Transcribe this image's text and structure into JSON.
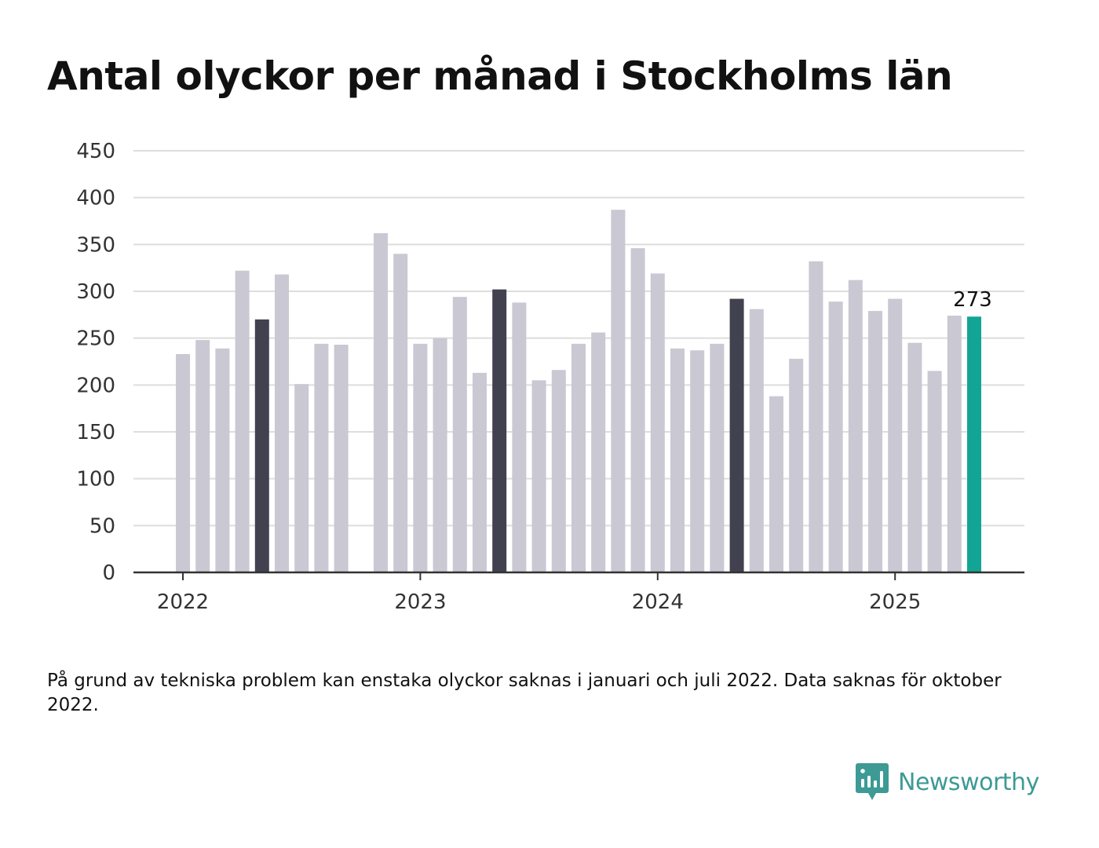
{
  "title": "Antal olyckor per månad i Stockholms län",
  "footnote": "På grund av tekniska problem kan enstaka olyckor saknas i januari och juli 2022. Data saknas för oktober 2022.",
  "brand": {
    "name": "Newsworthy",
    "icon": "newsworthy-logo-icon",
    "color": "#3d9a95"
  },
  "colors": {
    "bar_default": "#c9c8d3",
    "bar_may": "#424150",
    "bar_latest": "#12a596",
    "grid": "#dddddd",
    "axis": "#333333"
  },
  "chart_data": {
    "type": "bar",
    "title": "Antal olyckor per månad i Stockholms län",
    "xlabel": "",
    "ylabel": "",
    "ylim": [
      0,
      450
    ],
    "yticks": [
      0,
      50,
      100,
      150,
      200,
      250,
      300,
      350,
      400,
      450
    ],
    "xtick_labels": [
      "2022",
      "2023",
      "2024",
      "2025"
    ],
    "grid": true,
    "legend": "none",
    "categories": [
      "2022-01",
      "2022-02",
      "2022-03",
      "2022-04",
      "2022-05",
      "2022-06",
      "2022-07",
      "2022-08",
      "2022-09",
      "2022-10",
      "2022-11",
      "2022-12",
      "2023-01",
      "2023-02",
      "2023-03",
      "2023-04",
      "2023-05",
      "2023-06",
      "2023-07",
      "2023-08",
      "2023-09",
      "2023-10",
      "2023-11",
      "2023-12",
      "2024-01",
      "2024-02",
      "2024-03",
      "2024-04",
      "2024-05",
      "2024-06",
      "2024-07",
      "2024-08",
      "2024-09",
      "2024-10",
      "2024-11",
      "2024-12",
      "2025-01",
      "2025-02",
      "2025-03",
      "2025-04",
      "2025-05"
    ],
    "values": [
      233,
      248,
      239,
      322,
      270,
      318,
      201,
      244,
      243,
      null,
      362,
      340,
      244,
      250,
      294,
      213,
      302,
      288,
      205,
      216,
      244,
      256,
      387,
      346,
      319,
      239,
      237,
      244,
      292,
      281,
      188,
      228,
      332,
      289,
      312,
      279,
      292,
      245,
      215,
      274,
      273
    ],
    "highlighted": [
      {
        "category": "2022-05",
        "color": "#424150"
      },
      {
        "category": "2023-05",
        "color": "#424150"
      },
      {
        "category": "2024-05",
        "color": "#424150"
      },
      {
        "category": "2025-05",
        "color": "#12a596"
      }
    ],
    "annotations": [
      {
        "category": "2025-05",
        "text": "273"
      }
    ]
  }
}
